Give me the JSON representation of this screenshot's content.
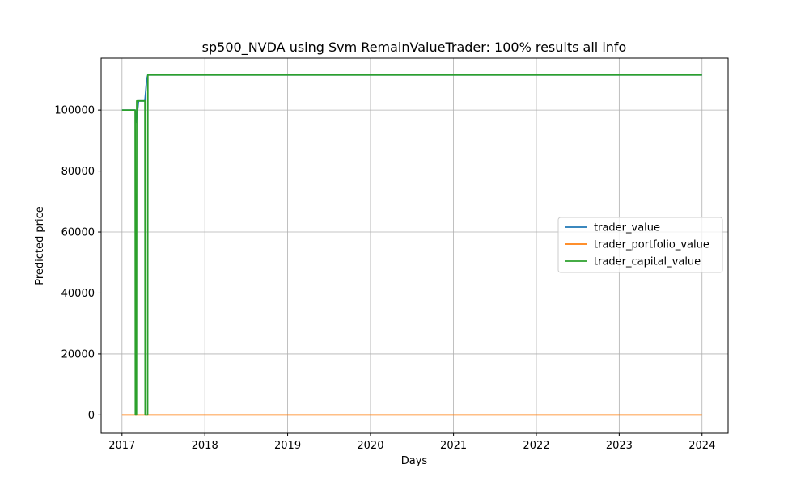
{
  "chart_data": {
    "type": "line",
    "title": "sp500_NVDA using Svm RemainValueTrader: 100% results all info",
    "xlabel": "Days",
    "ylabel": "Predicted price",
    "xlim": [
      "2016-10-01",
      "2024-04-25"
    ],
    "ylim": [
      -6000,
      117000
    ],
    "x_ticks": [
      "2017",
      "2018",
      "2019",
      "2020",
      "2021",
      "2022",
      "2023",
      "2024"
    ],
    "y_ticks": [
      0,
      20000,
      40000,
      60000,
      80000,
      100000
    ],
    "grid": true,
    "legend_position": "center-right",
    "series": [
      {
        "name": "trader_value",
        "color": "#1f77b4",
        "points": [
          [
            "2017-01-01",
            100000
          ],
          [
            "2017-03-01",
            100000
          ],
          [
            "2017-03-05",
            96000
          ],
          [
            "2017-03-15",
            103000
          ],
          [
            "2017-04-12",
            103000
          ],
          [
            "2017-04-20",
            110000
          ],
          [
            "2017-04-25",
            111500
          ],
          [
            "2024-01-01",
            111500
          ]
        ]
      },
      {
        "name": "trader_portfolio_value",
        "color": "#ff7f0e",
        "points": [
          [
            "2017-01-01",
            0
          ],
          [
            "2024-01-01",
            0
          ]
        ]
      },
      {
        "name": "trader_capital_value",
        "color": "#2ca02c",
        "points": [
          [
            "2017-01-01",
            100000
          ],
          [
            "2017-02-28",
            100000
          ],
          [
            "2017-03-01",
            0
          ],
          [
            "2017-03-06",
            0
          ],
          [
            "2017-03-07",
            103000
          ],
          [
            "2017-04-12",
            103000
          ],
          [
            "2017-04-13",
            0
          ],
          [
            "2017-04-24",
            0
          ],
          [
            "2017-04-25",
            111500
          ],
          [
            "2024-01-01",
            111500
          ]
        ]
      }
    ]
  }
}
